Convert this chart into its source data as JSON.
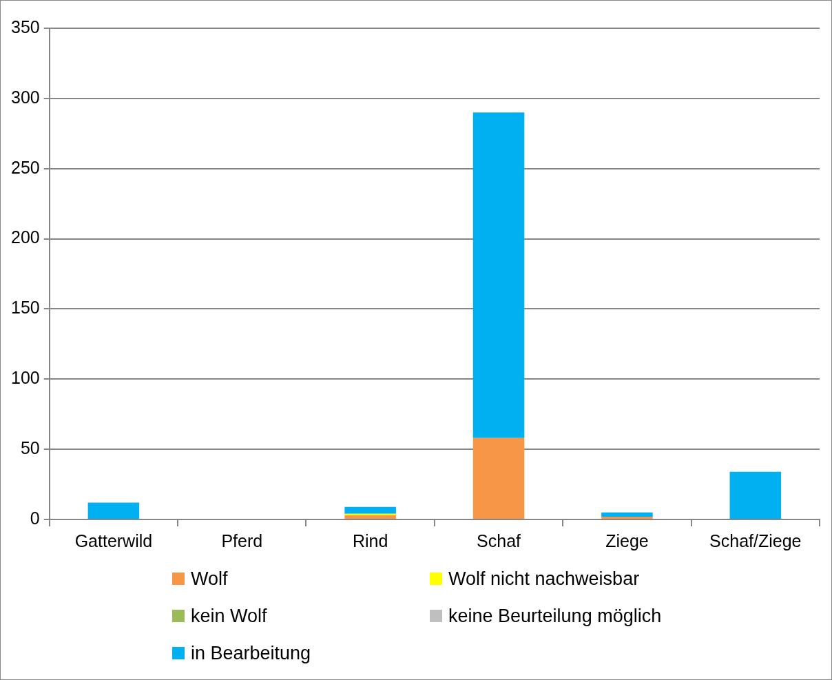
{
  "chart_data": {
    "type": "bar",
    "stacked": true,
    "categories": [
      "Gatterwild",
      "Pferd",
      "Rind",
      "Schaf",
      "Ziege",
      "Schaf/Ziege"
    ],
    "series": [
      {
        "name": "Wolf",
        "color": "#f79646",
        "values": [
          0,
          0,
          3,
          58,
          2,
          0
        ]
      },
      {
        "name": "Wolf nicht nachweisbar",
        "color": "#ffff00",
        "values": [
          0,
          0,
          1,
          0,
          0,
          0
        ]
      },
      {
        "name": "kein Wolf",
        "color": "#9bbb59",
        "values": [
          0,
          0,
          0,
          0,
          0,
          0
        ]
      },
      {
        "name": "keine Beurteilung möglich",
        "color": "#bfbfbf",
        "values": [
          0,
          0,
          0,
          0,
          0,
          0
        ]
      },
      {
        "name": "in Bearbeitung",
        "color": "#00b0f0",
        "values": [
          12,
          0,
          5,
          232,
          3,
          34
        ]
      }
    ],
    "ylim": [
      0,
      350
    ],
    "yticks": [
      0,
      50,
      100,
      150,
      200,
      250,
      300,
      350
    ],
    "grid": "y",
    "legend": "bottom"
  }
}
